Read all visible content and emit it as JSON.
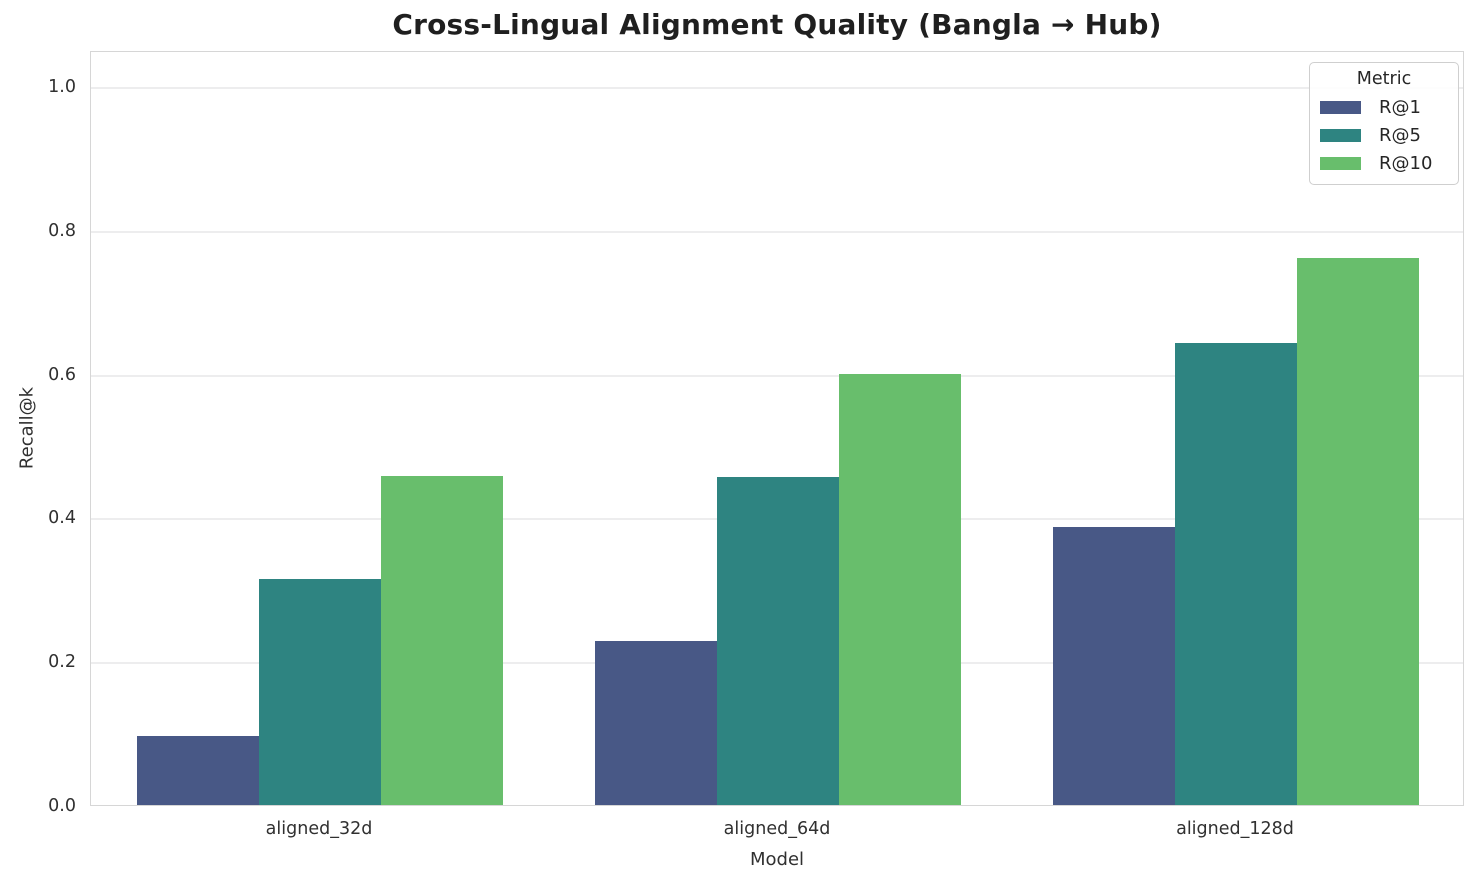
{
  "chart_data": {
    "type": "bar",
    "title": "Cross-Lingual Alignment Quality (Bangla → Hub)",
    "xlabel": "Model",
    "ylabel": "Recall@k",
    "categories": [
      "aligned_32d",
      "aligned_64d",
      "aligned_128d"
    ],
    "series": [
      {
        "name": "R@1",
        "color": "#485886",
        "values": [
          0.096,
          0.228,
          0.386
        ]
      },
      {
        "name": "R@5",
        "color": "#2e8481",
        "values": [
          0.314,
          0.456,
          0.643
        ]
      },
      {
        "name": "R@10",
        "color": "#68be6c",
        "values": [
          0.458,
          0.599,
          0.761
        ]
      }
    ],
    "yticks": [
      "0.0",
      "0.2",
      "0.4",
      "0.6",
      "0.8",
      "1.0"
    ],
    "ylim": [
      0,
      1.05
    ],
    "grid": true,
    "group_width_fraction": 0.8,
    "legend": {
      "title": "Metric",
      "position": "upper right"
    }
  },
  "style_colors": {
    "grid": "#ededee",
    "spine": "#d6d6d6",
    "text": "#303030",
    "title_text": "#1f1f1f"
  }
}
